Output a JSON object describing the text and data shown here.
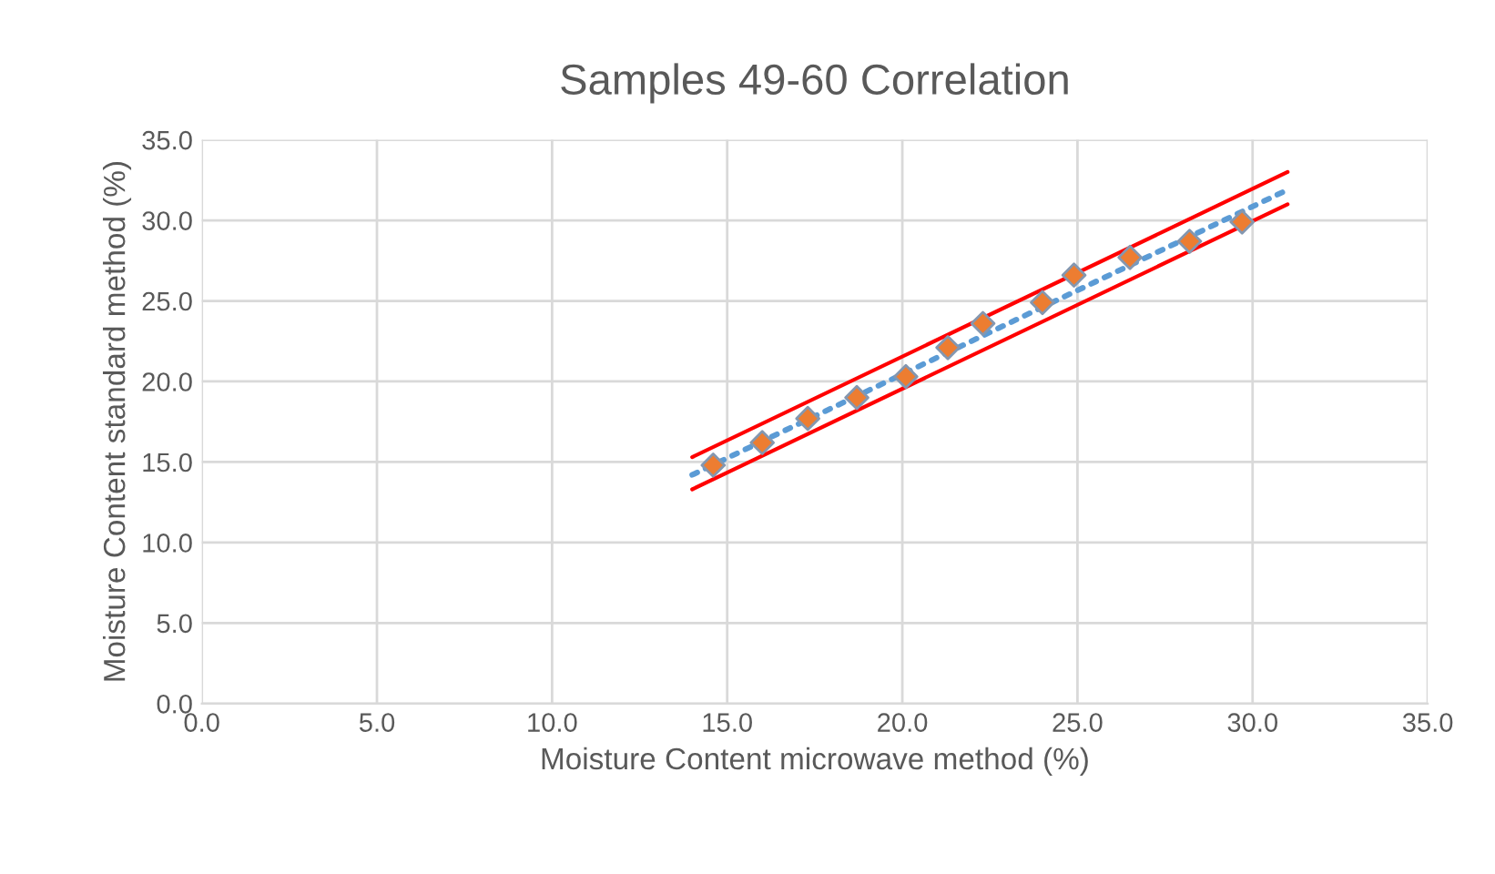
{
  "chart_data": {
    "type": "scatter",
    "title": "Samples 49-60 Correlation",
    "xlabel": "Moisture Content microwave method (%)",
    "ylabel": "Moisture Content standard method (%)",
    "series": [
      {
        "color": "#ed7d31",
        "marker": "diamond",
        "x": [
          14.6,
          16.0,
          17.3,
          18.7,
          20.1,
          21.3,
          22.3,
          24.0,
          24.9,
          26.5,
          28.2,
          29.7
        ],
        "values": [
          14.8,
          16.2,
          17.7,
          19.0,
          20.3,
          22.1,
          23.6,
          24.9,
          26.6,
          27.7,
          28.7,
          29.9
        ]
      },
      {
        "type": "line",
        "color": "#5b9bd5",
        "line_style": "dotted",
        "x": [
          14.0,
          31.0
        ],
        "values": [
          14.2,
          31.9
        ]
      },
      {
        "type": "line",
        "color": "#ff0000",
        "line_style": "solid",
        "x": [
          14.0,
          31.0
        ],
        "values": [
          15.3,
          33.0
        ]
      },
      {
        "type": "line",
        "color": "#ff0000",
        "line_style": "solid",
        "x": [
          14.0,
          31.0
        ],
        "values": [
          13.3,
          31.0
        ]
      }
    ],
    "xlim": [
      0,
      35
    ],
    "ylim": [
      0,
      35
    ],
    "xticks": [
      {
        "value": 0,
        "label": "0.0"
      },
      {
        "value": 5,
        "label": "5.0"
      },
      {
        "value": 10,
        "label": "10.0"
      },
      {
        "value": 15,
        "label": "15.0"
      },
      {
        "value": 20,
        "label": "20.0"
      },
      {
        "value": 25,
        "label": "25.0"
      },
      {
        "value": 30,
        "label": "30.0"
      },
      {
        "value": 35,
        "label": "35.0"
      }
    ],
    "yticks": [
      {
        "value": 0,
        "label": "0.0"
      },
      {
        "value": 5,
        "label": "5.0"
      },
      {
        "value": 10,
        "label": "10.0"
      },
      {
        "value": 15,
        "label": "15.0"
      },
      {
        "value": 20,
        "label": "20.0"
      },
      {
        "value": 25,
        "label": "25.0"
      },
      {
        "value": 30,
        "label": "30.0"
      },
      {
        "value": 35,
        "label": "35.0"
      }
    ],
    "grid": true,
    "legend": false
  }
}
